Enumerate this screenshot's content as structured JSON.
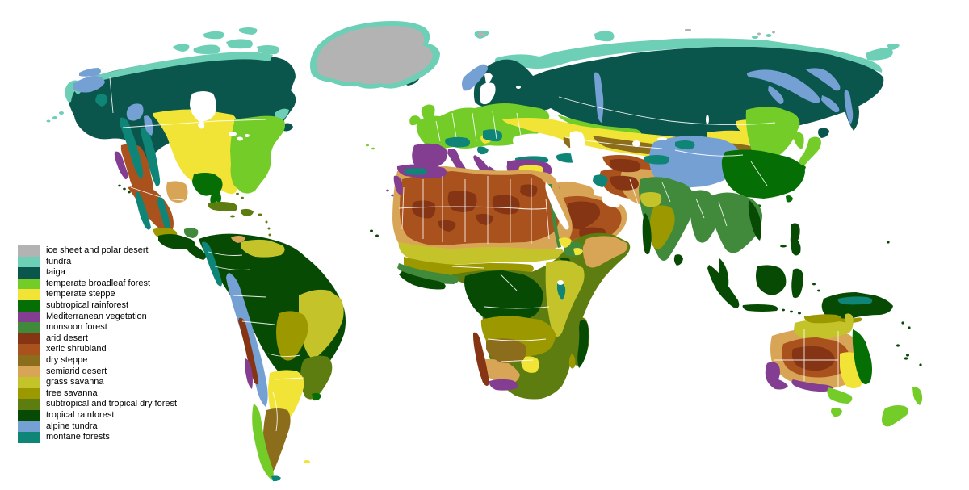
{
  "map": {
    "ocean": "#ffffff",
    "border_color": "#ffffff",
    "description": "world biome / vegetation zones map"
  },
  "legend": {
    "items": [
      {
        "id": "ice_sheet",
        "label": "ice sheet and polar desert",
        "color": "#b3b3b3"
      },
      {
        "id": "tundra",
        "label": "tundra",
        "color": "#6dcfb6"
      },
      {
        "id": "taiga",
        "label": "taiga",
        "color": "#0b564c"
      },
      {
        "id": "temperate_broadleaf_forest",
        "label": "temperate broadleaf forest",
        "color": "#74cc28"
      },
      {
        "id": "temperate_steppe",
        "label": "temperate steppe",
        "color": "#f2e436"
      },
      {
        "id": "subtropical_rainforest",
        "label": "subtropical rainforest",
        "color": "#056e05"
      },
      {
        "id": "mediterranean_vegetation",
        "label": "Mediterranean vegetation",
        "color": "#833e91"
      },
      {
        "id": "monsoon_forest",
        "label": "monsoon forest",
        "color": "#418a3b"
      },
      {
        "id": "arid_desert",
        "label": "arid desert",
        "color": "#853513"
      },
      {
        "id": "xeric_shrubland",
        "label": "xeric shrubland",
        "color": "#aa521d"
      },
      {
        "id": "dry_steppe",
        "label": "dry steppe",
        "color": "#8b6d1b"
      },
      {
        "id": "semiarid_desert",
        "label": "semiarid desert",
        "color": "#d8a557"
      },
      {
        "id": "grass_savanna",
        "label": "grass savanna",
        "color": "#c5c32a"
      },
      {
        "id": "tree_savanna",
        "label": "tree savanna",
        "color": "#9b9800"
      },
      {
        "id": "subtropical_tropical_dry_forest",
        "label": "subtropical and tropical dry forest",
        "color": "#5d7d10"
      },
      {
        "id": "tropical_rainforest",
        "label": "tropical rainforest",
        "color": "#064a04"
      },
      {
        "id": "alpine_tundra",
        "label": "alpine tundra",
        "color": "#74a0d4"
      },
      {
        "id": "montane_forests",
        "label": "montane forests",
        "color": "#0e8577"
      }
    ]
  }
}
